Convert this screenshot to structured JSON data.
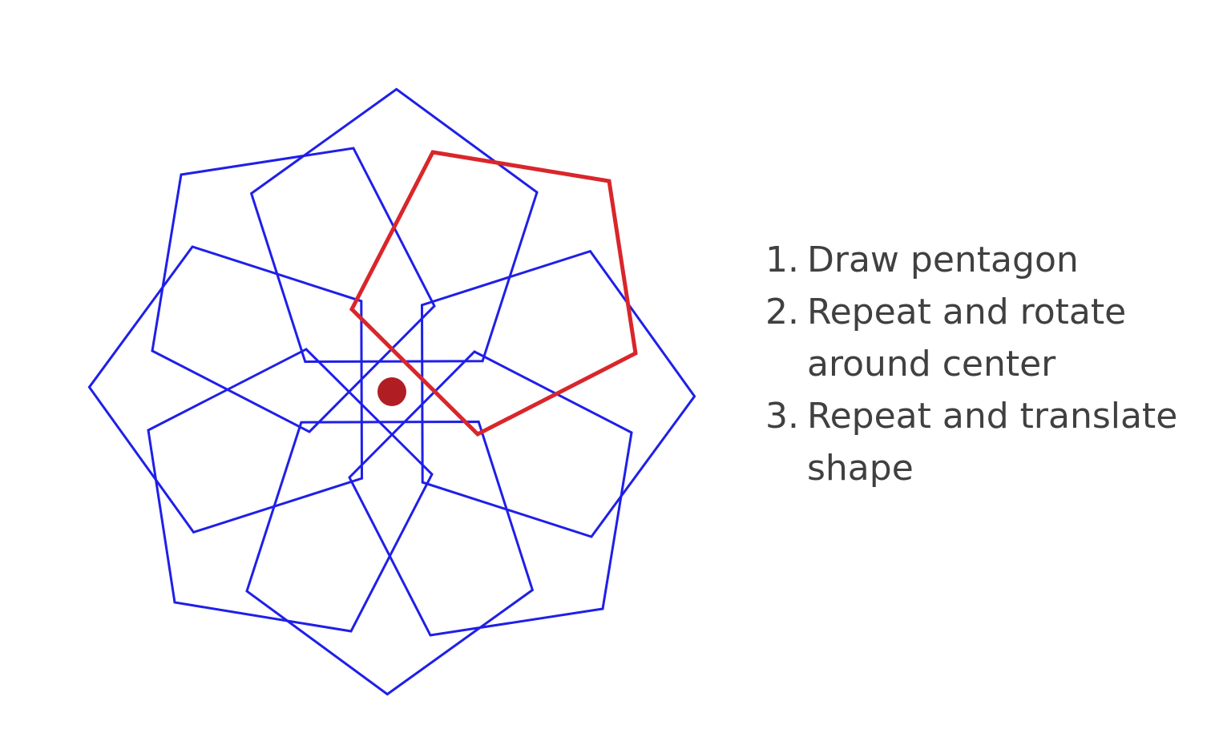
{
  "diagram": {
    "pattern": {
      "copies": 8,
      "rotation_step_deg": 45,
      "pattern_color": "#1f1fe8",
      "highlight_color": "#d9262b",
      "center_dot_color": "#b01e24"
    },
    "steps": [
      {
        "number": "1.",
        "text": "Draw pentagon"
      },
      {
        "number": "2.",
        "text": "Repeat and rotate around center"
      },
      {
        "number": "3.",
        "text": "Repeat and translate shape"
      }
    ]
  }
}
